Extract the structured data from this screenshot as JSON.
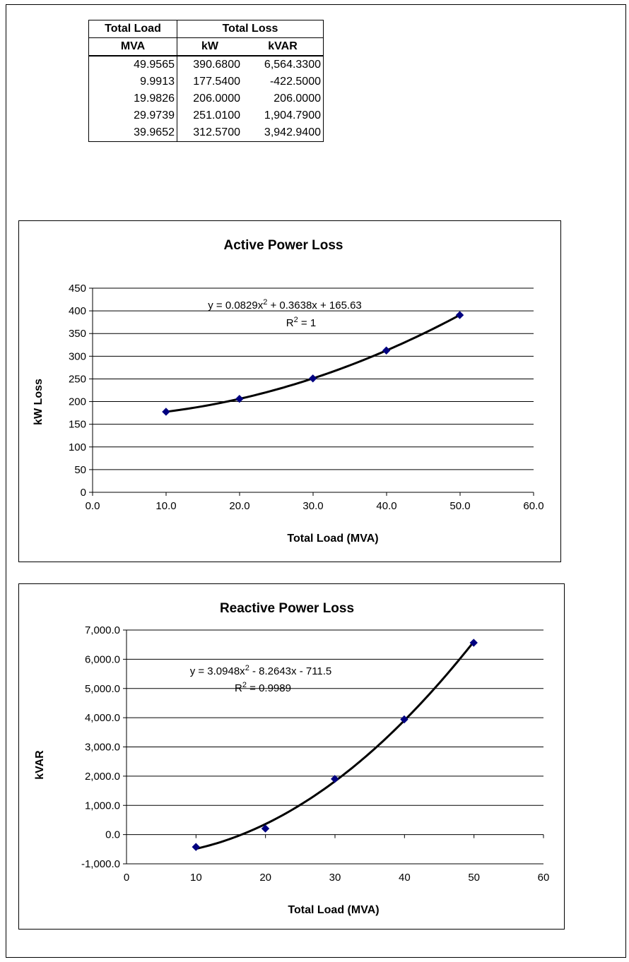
{
  "table": {
    "header1": [
      "Total Load",
      "Total Loss"
    ],
    "header2": [
      "MVA",
      "kW",
      "kVAR"
    ],
    "rows": [
      [
        "49.9565",
        "390.6800",
        "6,564.3300"
      ],
      [
        "9.9913",
        "177.5400",
        "-422.5000"
      ],
      [
        "19.9826",
        "206.0000",
        "206.0000"
      ],
      [
        "29.9739",
        "251.0100",
        "1,904.7900"
      ],
      [
        "39.9652",
        "312.5700",
        "3,942.9400"
      ]
    ]
  },
  "chart_data": [
    {
      "type": "scatter",
      "title": "Active Power Loss",
      "xlabel": "Total Load (MVA)",
      "ylabel": "kW Loss",
      "xlim": [
        0,
        60
      ],
      "ylim": [
        0,
        450
      ],
      "x_ticks": [
        "0.0",
        "10.0",
        "20.0",
        "30.0",
        "40.0",
        "50.0",
        "60.0"
      ],
      "y_ticks": [
        "0",
        "50",
        "100",
        "150",
        "200",
        "250",
        "300",
        "350",
        "400",
        "450"
      ],
      "grid": "horizontal",
      "points": {
        "x": [
          49.9565,
          9.9913,
          19.9826,
          29.9739,
          39.9652
        ],
        "y": [
          390.68,
          177.54,
          206.0,
          251.01,
          312.57
        ]
      },
      "trendline": {
        "type": "polynomial",
        "coefficients": [
          0.0829,
          0.3638,
          165.63
        ],
        "equation": "y = 0.0829x",
        "equation_sup": "2",
        "equation_rest": " + 0.3638x + 165.63",
        "r2_label": "R",
        "r2_sup": "2",
        "r2_rest": " = 1"
      },
      "marker_color": "#000080",
      "line_color": "#000000"
    },
    {
      "type": "scatter",
      "title": "Reactive Power Loss",
      "xlabel": "Total Load (MVA)",
      "ylabel": "kVAR",
      "xlim": [
        0,
        60
      ],
      "ylim": [
        -1000,
        7000
      ],
      "x_ticks": [
        "0",
        "10",
        "20",
        "30",
        "40",
        "50",
        "60"
      ],
      "y_ticks": [
        "-1,000.0",
        "0.0",
        "1,000.0",
        "2,000.0",
        "3,000.0",
        "4,000.0",
        "5,000.0",
        "6,000.0",
        "7,000.0"
      ],
      "grid": "horizontal",
      "points": {
        "x": [
          49.9565,
          9.9913,
          19.9826,
          29.9739,
          39.9652
        ],
        "y": [
          6564.33,
          -422.5,
          206.0,
          1904.79,
          3942.94
        ]
      },
      "trendline": {
        "type": "polynomial",
        "coefficients": [
          3.0948,
          -8.2643,
          -711.5
        ],
        "equation": "y = 3.0948x",
        "equation_sup": "2",
        "equation_rest": " - 8.2643x - 711.5",
        "r2_label": "R",
        "r2_sup": "2",
        "r2_rest": " = 0.9989"
      },
      "marker_color": "#000080",
      "line_color": "#000000"
    }
  ]
}
